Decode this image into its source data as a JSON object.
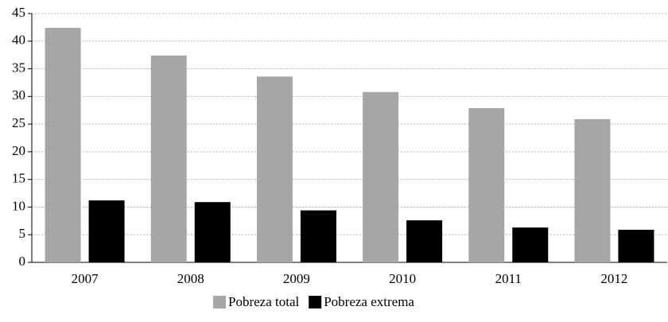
{
  "chart_data": {
    "type": "bar",
    "categories": [
      "2007",
      "2008",
      "2009",
      "2010",
      "2011",
      "2012"
    ],
    "series": [
      {
        "name": "Pobreza total",
        "color": "#a6a6a6",
        "values": [
          42.4,
          37.4,
          33.6,
          30.8,
          27.9,
          25.9
        ]
      },
      {
        "name": "Pobreza extrema",
        "color": "#000000",
        "values": [
          11.2,
          10.9,
          9.4,
          7.6,
          6.3,
          5.9
        ]
      }
    ],
    "ylim": [
      0,
      45
    ],
    "yticks": [
      0,
      5,
      10,
      15,
      20,
      25,
      30,
      35,
      40,
      45
    ],
    "grid": true,
    "legend": "bottom"
  }
}
